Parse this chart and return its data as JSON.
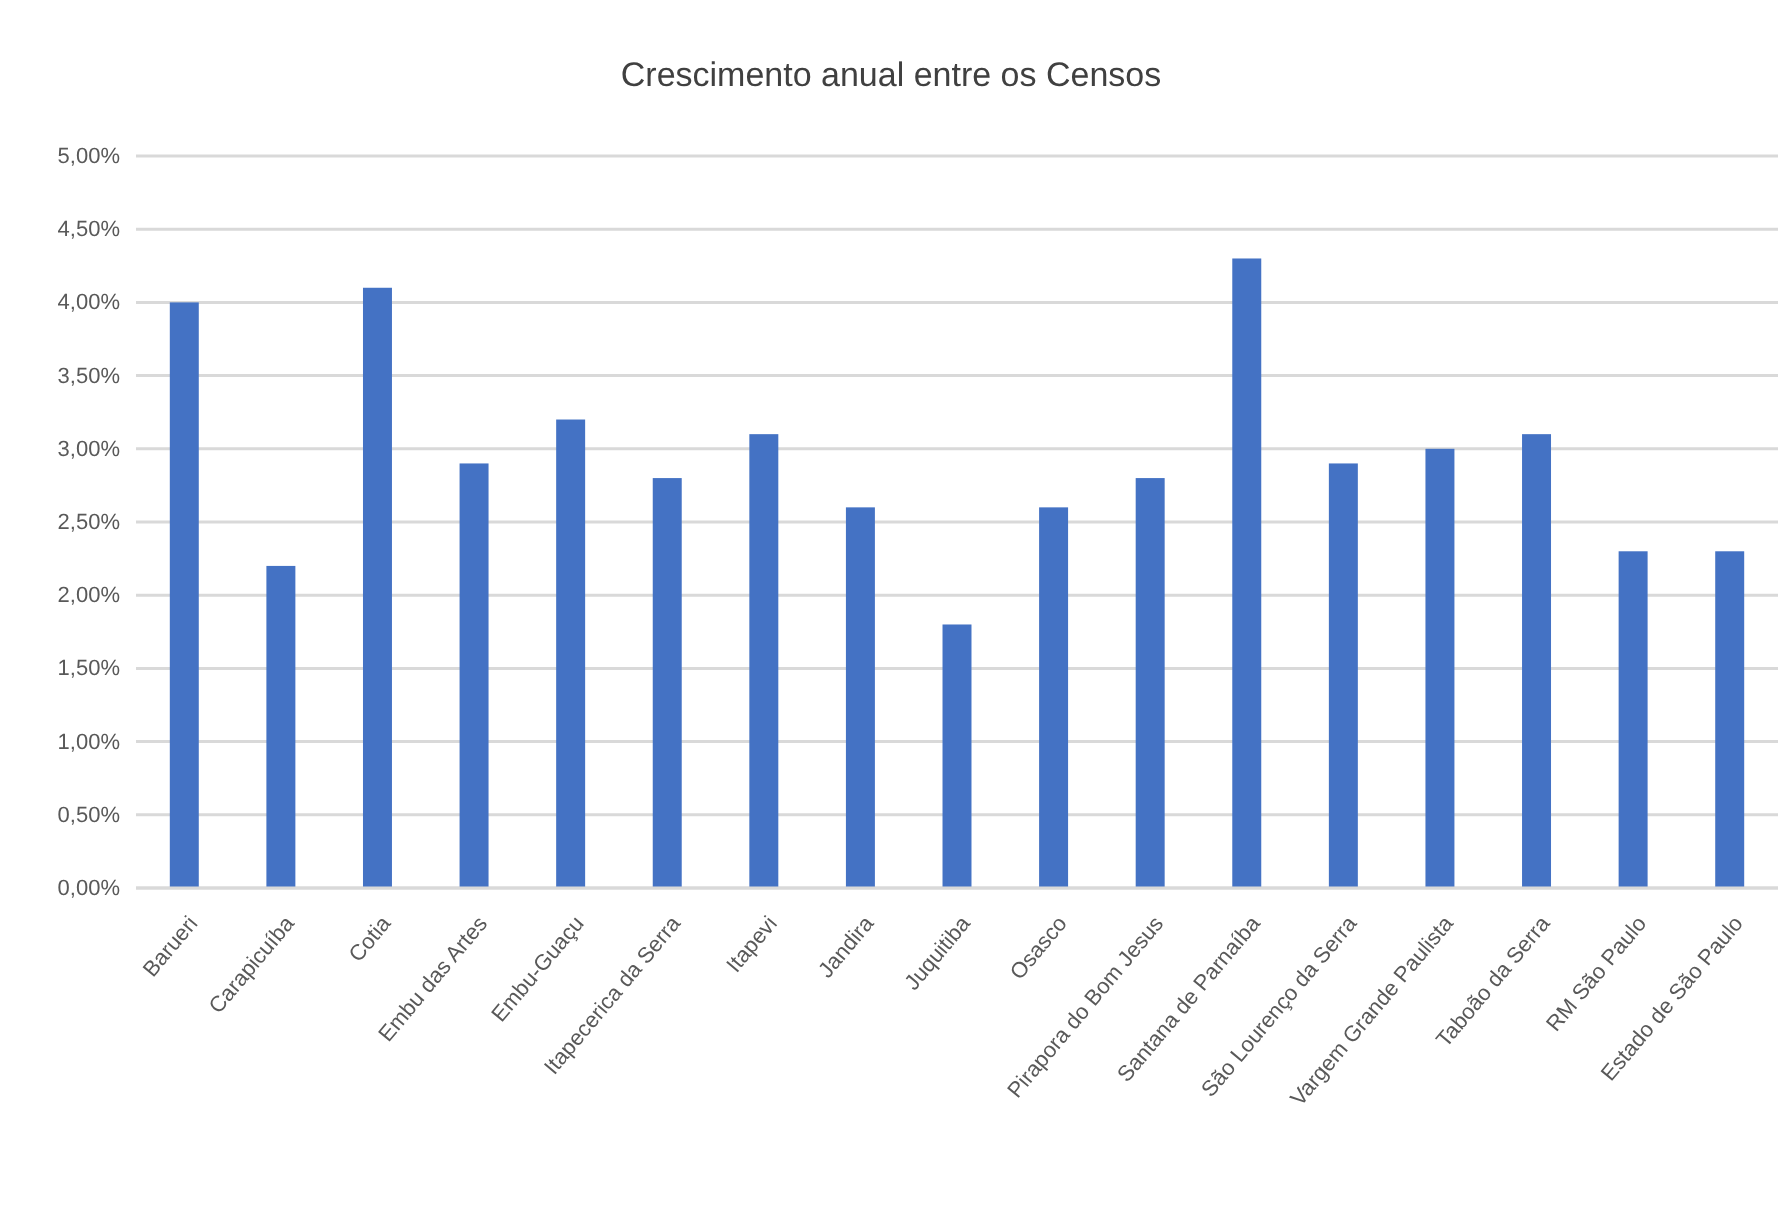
{
  "chart_data": {
    "type": "bar",
    "title": "Crescimento anual entre os Censos",
    "categories": [
      "Barueri",
      "Carapicuíba",
      "Cotia",
      "Embu das Artes",
      "Embu-Guaçu",
      "Itapecerica da Serra",
      "Itapevi",
      "Jandira",
      "Juquitiba",
      "Osasco",
      "Pirapora do Bom Jesus",
      "Santana de Parnaíba",
      "São Lourenço da Serra",
      "Vargem Grande Paulista",
      "Taboão da Serra",
      "RM São Paulo",
      "Estado de São Paulo"
    ],
    "values": [
      4.0,
      2.2,
      4.1,
      2.9,
      3.2,
      2.8,
      3.1,
      2.6,
      1.8,
      2.6,
      2.8,
      4.3,
      2.9,
      3.0,
      3.1,
      2.3,
      2.3
    ],
    "color": "#4472c4",
    "ylim": [
      0,
      5
    ],
    "yticks": [
      {
        "value": 0,
        "label": "0,00%"
      },
      {
        "value": 0.5,
        "label": "0,50%"
      },
      {
        "value": 1,
        "label": "1,00%"
      },
      {
        "value": 1.5,
        "label": "1,50%"
      },
      {
        "value": 2,
        "label": "2,00%"
      },
      {
        "value": 2.5,
        "label": "2,50%"
      },
      {
        "value": 3,
        "label": "3,00%"
      },
      {
        "value": 3.5,
        "label": "3,50%"
      },
      {
        "value": 4,
        "label": "4,00%"
      },
      {
        "value": 4.5,
        "label": "4,50%"
      },
      {
        "value": 5,
        "label": "5,00%"
      }
    ],
    "grid": "y"
  }
}
